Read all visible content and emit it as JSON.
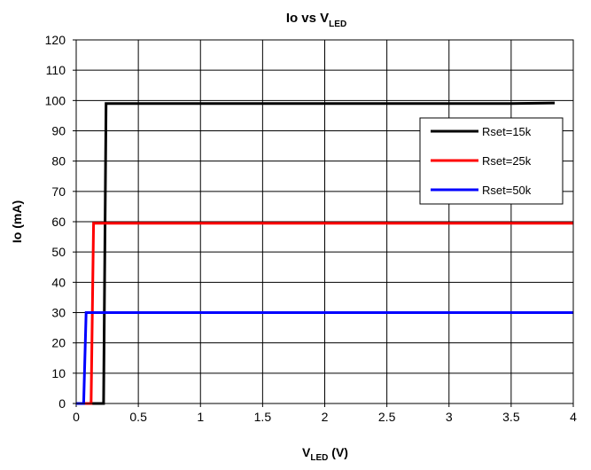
{
  "chart_data": {
    "type": "line",
    "title": {
      "main": "Io vs V",
      "sub": "LED"
    },
    "xlabel": {
      "main": "V",
      "sub": "LED",
      "suffix": " (V)"
    },
    "ylabel": "Io (mA)",
    "xlim": [
      0,
      4
    ],
    "ylim": [
      0,
      120
    ],
    "x_ticks": [
      "0",
      "0.5",
      "1",
      "1.5",
      "2",
      "2.5",
      "3",
      "3.5",
      "4"
    ],
    "y_ticks": [
      "0",
      "10",
      "20",
      "30",
      "40",
      "50",
      "60",
      "70",
      "80",
      "90",
      "100",
      "110",
      "120"
    ],
    "grid": true,
    "legend_position": "top-right",
    "series": [
      {
        "name": "Rset=15k",
        "color": "#000000",
        "x": [
          0.0,
          0.22,
          0.24,
          0.5,
          1.0,
          1.5,
          2.0,
          2.5,
          3.0,
          3.5,
          3.85
        ],
        "y": [
          0,
          0,
          99,
          99,
          99,
          99,
          99,
          99,
          99,
          99,
          99.2
        ]
      },
      {
        "name": "Rset=25k",
        "color": "#ff0000",
        "x": [
          0.0,
          0.12,
          0.14,
          0.5,
          1.0,
          1.5,
          2.0,
          2.5,
          3.0,
          3.5,
          4.0
        ],
        "y": [
          0,
          0,
          59.5,
          59.5,
          59.5,
          59.5,
          59.5,
          59.5,
          59.5,
          59.5,
          59.5
        ]
      },
      {
        "name": "Rset=50k",
        "color": "#0000ff",
        "x": [
          0.0,
          0.06,
          0.08,
          0.5,
          1.0,
          1.5,
          2.0,
          2.5,
          3.0,
          3.5,
          4.0
        ],
        "y": [
          0,
          0,
          30,
          30,
          30,
          30,
          30,
          30,
          30,
          30,
          30
        ]
      }
    ]
  }
}
